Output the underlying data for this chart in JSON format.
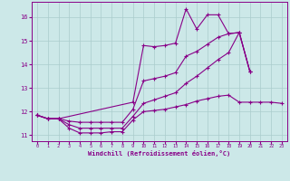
{
  "xlabel": "Windchill (Refroidissement éolien,°C)",
  "bg_color": "#cce8e8",
  "line_color": "#880088",
  "grid_color": "#aacccc",
  "x": [
    0,
    1,
    2,
    3,
    4,
    5,
    6,
    7,
    8,
    9,
    10,
    11,
    12,
    13,
    14,
    15,
    16,
    17,
    18,
    19,
    20,
    21,
    22,
    23
  ],
  "line1": [
    11.85,
    11.7,
    11.7,
    null,
    null,
    null,
    null,
    null,
    null,
    12.4,
    14.8,
    14.75,
    14.8,
    14.9,
    16.35,
    15.5,
    16.1,
    16.1,
    15.3,
    15.35,
    13.7,
    null,
    null,
    null
  ],
  "line2": [
    11.85,
    11.7,
    11.7,
    11.6,
    11.55,
    11.55,
    11.55,
    11.55,
    11.55,
    12.1,
    13.3,
    13.4,
    13.5,
    13.65,
    14.35,
    14.55,
    14.85,
    15.15,
    15.3,
    15.35,
    13.7,
    null,
    null,
    null
  ],
  "line3": [
    11.85,
    11.7,
    11.7,
    11.45,
    11.3,
    11.3,
    11.3,
    11.3,
    11.3,
    11.8,
    12.35,
    12.5,
    12.65,
    12.8,
    13.2,
    13.5,
    13.85,
    14.2,
    14.5,
    15.35,
    13.7,
    null,
    null,
    null
  ],
  "line4": [
    11.85,
    11.7,
    11.7,
    11.3,
    11.1,
    11.1,
    11.1,
    11.15,
    11.15,
    11.65,
    12.0,
    12.05,
    12.1,
    12.2,
    12.3,
    12.45,
    12.55,
    12.65,
    12.7,
    12.4,
    12.4,
    12.4,
    12.4,
    12.35
  ],
  "ylim": [
    10.75,
    16.65
  ],
  "yticks": [
    11,
    12,
    13,
    14,
    15,
    16
  ],
  "xlim": [
    -0.5,
    23.5
  ],
  "xticks": [
    0,
    1,
    2,
    3,
    4,
    5,
    6,
    7,
    8,
    9,
    10,
    11,
    12,
    13,
    14,
    15,
    16,
    17,
    18,
    19,
    20,
    21,
    22,
    23
  ]
}
